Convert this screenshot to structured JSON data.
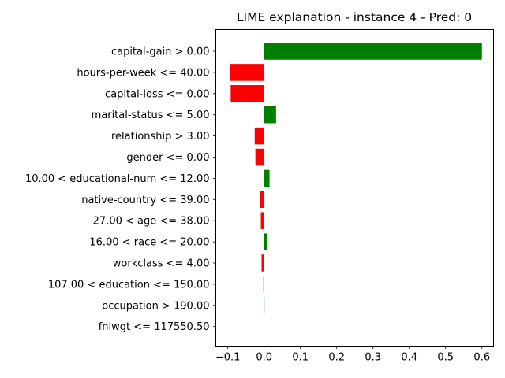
{
  "chart_data": {
    "type": "bar",
    "orientation": "horizontal",
    "title": "LIME explanation - instance 4 - Pred: 0",
    "xlabel": "",
    "ylabel": "",
    "xlim": [
      -0.133,
      0.632
    ],
    "xticks": [
      -0.1,
      0.0,
      0.1,
      0.2,
      0.3,
      0.4,
      0.5,
      0.6
    ],
    "xtick_labels": [
      "−0.1",
      "0.0",
      "0.1",
      "0.2",
      "0.3",
      "0.4",
      "0.5",
      "0.6"
    ],
    "grid": false,
    "positive_color": "#008000",
    "negative_color": "#ff0000",
    "categories": [
      "capital-gain > 0.00",
      "hours-per-week <= 40.00",
      "capital-loss <= 0.00",
      "marital-status <= 5.00",
      "relationship > 3.00",
      "gender <= 0.00",
      "10.00 < educational-num <= 12.00",
      "native-country <= 39.00",
      "27.00 < age <= 38.00",
      "16.00 < race <= 20.00",
      "workclass <= 4.00",
      "107.00 < education <= 150.00",
      "occupation > 190.00",
      "fnlwgt <= 117550.50"
    ],
    "values": [
      0.6,
      -0.095,
      -0.092,
      0.033,
      -0.026,
      -0.024,
      0.015,
      -0.011,
      -0.009,
      0.009,
      -0.007,
      -0.002,
      0.001,
      0.0
    ]
  }
}
